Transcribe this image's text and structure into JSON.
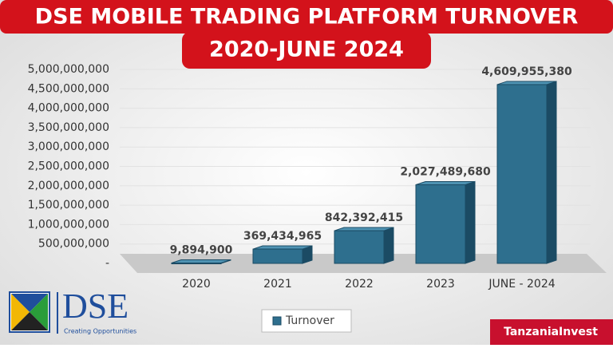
{
  "chart_data": {
    "type": "bar3d",
    "title": "DSE MOBILE TRADING PLATFORM TURNOVER",
    "subtitle": "2020-JUNE 2024",
    "categories": [
      "2020",
      "2021",
      "2022",
      "2023",
      "JUNE - 2024"
    ],
    "series": [
      {
        "name": "Turnover",
        "color": "#2e6f8e",
        "values": [
          9894900,
          369434965,
          842392415,
          2027489680,
          4609955380
        ],
        "value_labels": [
          "9,894,900",
          "369,434,965",
          "842,392,415",
          "2,027,489,680",
          "4,609,955,380"
        ]
      }
    ],
    "ylim": [
      0,
      5000000000
    ],
    "yticks": [
      {
        "value": 0,
        "label": "-"
      },
      {
        "value": 500000000,
        "label": "500,000,000"
      },
      {
        "value": 1000000000,
        "label": "1,000,000,000"
      },
      {
        "value": 1500000000,
        "label": "1,500,000,000"
      },
      {
        "value": 2000000000,
        "label": "2,000,000,000"
      },
      {
        "value": 2500000000,
        "label": "2,500,000,000"
      },
      {
        "value": 3000000000,
        "label": "3,000,000,000"
      },
      {
        "value": 3500000000,
        "label": "3,500,000,000"
      },
      {
        "value": 4000000000,
        "label": "4,000,000,000"
      },
      {
        "value": 4500000000,
        "label": "4,500,000,000"
      },
      {
        "value": 5000000000,
        "label": "5,000,000,000"
      }
    ],
    "grid": true,
    "legend": "bottom"
  },
  "logo": {
    "name": "DSE",
    "tagline": "Creating Opportunities"
  },
  "source": "TanzaniaInvest"
}
